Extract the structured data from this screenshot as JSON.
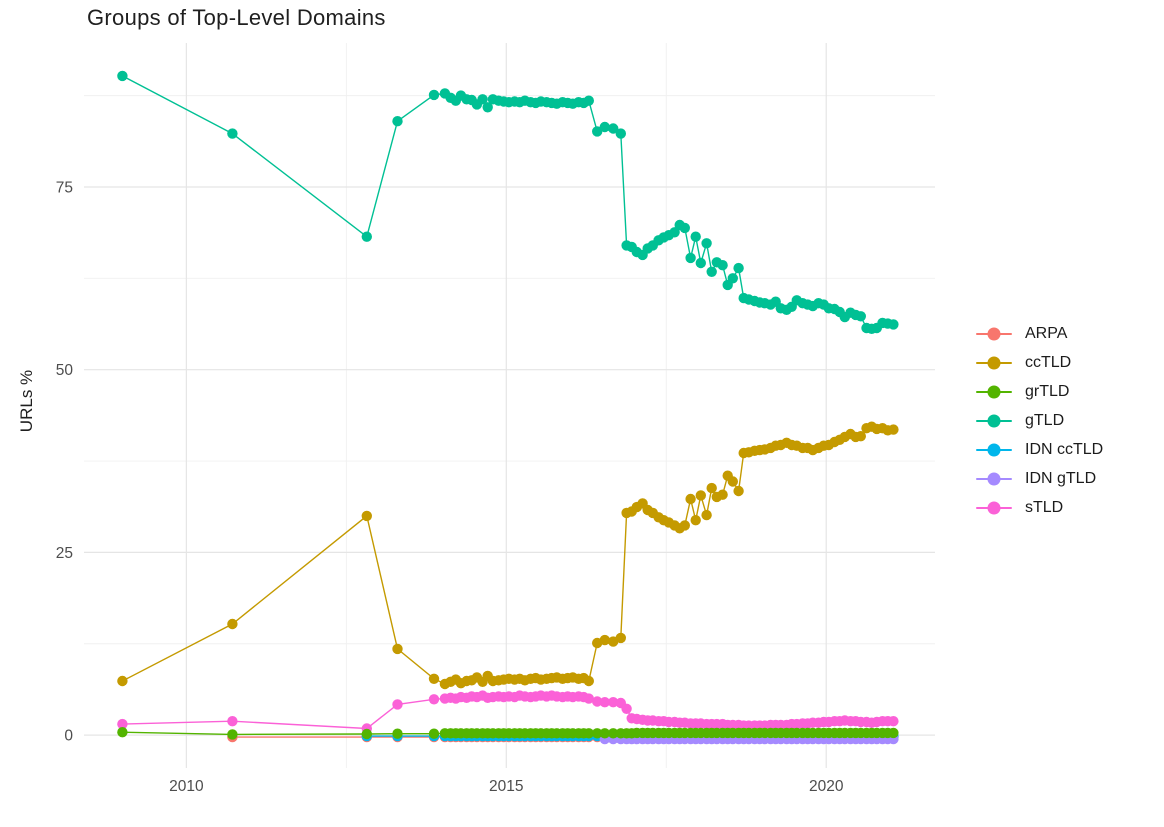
{
  "chart_data": {
    "type": "line",
    "title": "Groups of Top-Level Domains",
    "xlabel": "",
    "ylabel": "URLs %",
    "x_ticks": [
      2010,
      2015,
      2020
    ],
    "y_ticks": [
      0,
      25,
      50,
      75
    ],
    "x_minor_gridlines": [
      2012.5,
      2017.5
    ],
    "y_minor_gridlines": [
      12.5,
      37.5,
      62.5,
      87.5
    ],
    "xlim": [
      2008.4,
      2021.7
    ],
    "ylim": [
      -4.5,
      94.7
    ],
    "grid": true,
    "legend_position": "right",
    "x": [
      2009.0,
      2010.72,
      2012.82,
      2013.3,
      2013.87,
      2014.04,
      2014.13,
      2014.21,
      2014.29,
      2014.38,
      2014.46,
      2014.54,
      2014.63,
      2014.71,
      2014.79,
      2014.88,
      2014.96,
      2015.04,
      2015.13,
      2015.21,
      2015.29,
      2015.38,
      2015.46,
      2015.54,
      2015.63,
      2015.71,
      2015.79,
      2015.88,
      2015.96,
      2016.04,
      2016.13,
      2016.21,
      2016.29,
      2016.42,
      2016.54,
      2016.67,
      2016.79,
      2016.88,
      2016.96,
      2017.04,
      2017.13,
      2017.21,
      2017.29,
      2017.38,
      2017.46,
      2017.54,
      2017.63,
      2017.71,
      2017.79,
      2017.88,
      2017.96,
      2018.04,
      2018.13,
      2018.21,
      2018.29,
      2018.38,
      2018.46,
      2018.54,
      2018.63,
      2018.71,
      2018.79,
      2018.88,
      2018.96,
      2019.04,
      2019.13,
      2019.21,
      2019.29,
      2019.38,
      2019.46,
      2019.54,
      2019.63,
      2019.71,
      2019.79,
      2019.88,
      2019.96,
      2020.04,
      2020.13,
      2020.21,
      2020.29,
      2020.38,
      2020.46,
      2020.54,
      2020.63,
      2020.71,
      2020.79,
      2020.88,
      2020.96,
      2021.05
    ],
    "series": [
      {
        "name": "ARPA",
        "color": "#F8766D",
        "start_index": 1,
        "y_const": 0
      },
      {
        "name": "ccTLD",
        "color": "#C49A00",
        "start_index": 0,
        "y": [
          7.4,
          15.2,
          30.0,
          11.8,
          7.7,
          7.0,
          7.3,
          7.6,
          7.1,
          7.4,
          7.5,
          7.9,
          7.3,
          8.1,
          7.4,
          7.5,
          7.6,
          7.7,
          7.6,
          7.7,
          7.5,
          7.7,
          7.8,
          7.6,
          7.7,
          7.8,
          7.9,
          7.7,
          7.8,
          7.9,
          7.7,
          7.8,
          7.4,
          12.6,
          13.0,
          12.8,
          13.3,
          30.4,
          30.6,
          31.2,
          31.7,
          30.8,
          30.4,
          29.8,
          29.4,
          29.1,
          28.7,
          28.3,
          28.7,
          32.3,
          29.4,
          32.8,
          30.1,
          33.8,
          32.6,
          32.9,
          35.5,
          34.7,
          33.4,
          38.6,
          38.7,
          38.9,
          39.0,
          39.1,
          39.3,
          39.6,
          39.7,
          40.0,
          39.7,
          39.6,
          39.3,
          39.3,
          39.0,
          39.3,
          39.6,
          39.7,
          40.1,
          40.4,
          40.8,
          41.2,
          40.8,
          40.9,
          42.0,
          42.2,
          41.9,
          42.0,
          41.7,
          41.8
        ]
      },
      {
        "name": "grTLD",
        "color": "#53B400",
        "start_index": 0,
        "y": [
          0.4,
          0.1,
          0.15,
          0.2,
          0.2,
          0.25,
          0.25,
          0.25,
          0.25,
          0.25,
          0.25,
          0.25,
          0.25,
          0.25,
          0.25,
          0.25,
          0.25,
          0.25,
          0.25,
          0.25,
          0.25,
          0.25,
          0.25,
          0.25,
          0.25,
          0.25,
          0.25,
          0.25,
          0.25,
          0.25,
          0.25,
          0.25,
          0.25,
          0.25,
          0.25,
          0.25,
          0.25,
          0.25,
          0.25,
          0.3,
          0.3,
          0.3,
          0.3,
          0.3,
          0.3,
          0.3,
          0.3,
          0.3,
          0.3,
          0.3,
          0.3,
          0.3,
          0.3,
          0.3,
          0.3,
          0.3,
          0.3,
          0.3,
          0.3,
          0.3,
          0.3,
          0.3,
          0.3,
          0.3,
          0.3,
          0.3,
          0.3,
          0.3,
          0.3,
          0.3,
          0.3,
          0.3,
          0.3,
          0.3,
          0.3,
          0.3,
          0.3,
          0.3,
          0.3,
          0.3,
          0.3,
          0.3,
          0.3,
          0.3,
          0.3,
          0.3,
          0.3,
          0.3
        ]
      },
      {
        "name": "gTLD",
        "color": "#00C094",
        "start_index": 0,
        "y": [
          90.2,
          82.3,
          68.2,
          84.0,
          87.6,
          87.8,
          87.2,
          86.8,
          87.5,
          87.0,
          86.9,
          86.3,
          87.0,
          85.9,
          87.0,
          86.8,
          86.7,
          86.6,
          86.7,
          86.6,
          86.8,
          86.6,
          86.5,
          86.7,
          86.6,
          86.5,
          86.4,
          86.6,
          86.5,
          86.4,
          86.6,
          86.5,
          86.8,
          82.6,
          83.2,
          83.0,
          82.3,
          67.0,
          66.8,
          66.1,
          65.7,
          66.6,
          67.0,
          67.7,
          68.1,
          68.4,
          68.8,
          69.8,
          69.4,
          65.3,
          68.2,
          64.6,
          67.3,
          63.4,
          64.7,
          64.3,
          61.6,
          62.5,
          63.9,
          59.8,
          59.6,
          59.4,
          59.2,
          59.1,
          58.9,
          59.3,
          58.4,
          58.2,
          58.6,
          59.5,
          59.1,
          58.9,
          58.7,
          59.1,
          58.9,
          58.4,
          58.3,
          57.9,
          57.2,
          57.8,
          57.5,
          57.3,
          55.7,
          55.6,
          55.7,
          56.4,
          56.3,
          56.2
        ]
      },
      {
        "name": "IDN ccTLD",
        "color": "#00B6EB",
        "start_index": 2,
        "y_const": 0
      },
      {
        "name": "IDN gTLD",
        "color": "#A58AFF",
        "start_index": 34,
        "y_const": 0
      },
      {
        "name": "sTLD",
        "color": "#FB61D7",
        "start_index": 0,
        "y": [
          1.5,
          1.9,
          0.9,
          4.2,
          4.9,
          5.0,
          5.1,
          5.0,
          5.2,
          5.1,
          5.3,
          5.2,
          5.4,
          5.1,
          5.2,
          5.3,
          5.2,
          5.3,
          5.2,
          5.4,
          5.3,
          5.2,
          5.3,
          5.4,
          5.3,
          5.4,
          5.3,
          5.2,
          5.3,
          5.2,
          5.3,
          5.2,
          5.0,
          4.6,
          4.5,
          4.5,
          4.4,
          3.6,
          2.3,
          2.2,
          2.1,
          2.0,
          2.0,
          1.9,
          1.9,
          1.8,
          1.8,
          1.7,
          1.7,
          1.6,
          1.6,
          1.6,
          1.5,
          1.5,
          1.5,
          1.5,
          1.4,
          1.4,
          1.4,
          1.3,
          1.3,
          1.3,
          1.3,
          1.3,
          1.4,
          1.4,
          1.4,
          1.4,
          1.5,
          1.5,
          1.6,
          1.6,
          1.7,
          1.7,
          1.8,
          1.8,
          1.9,
          1.9,
          2.0,
          1.9,
          1.9,
          1.8,
          1.8,
          1.7,
          1.8,
          1.9,
          1.9,
          1.9
        ]
      }
    ],
    "draw_order": [
      "ARPA",
      "IDN ccTLD",
      "IDN gTLD",
      "ccTLD",
      "gTLD",
      "sTLD",
      "grTLD"
    ]
  }
}
